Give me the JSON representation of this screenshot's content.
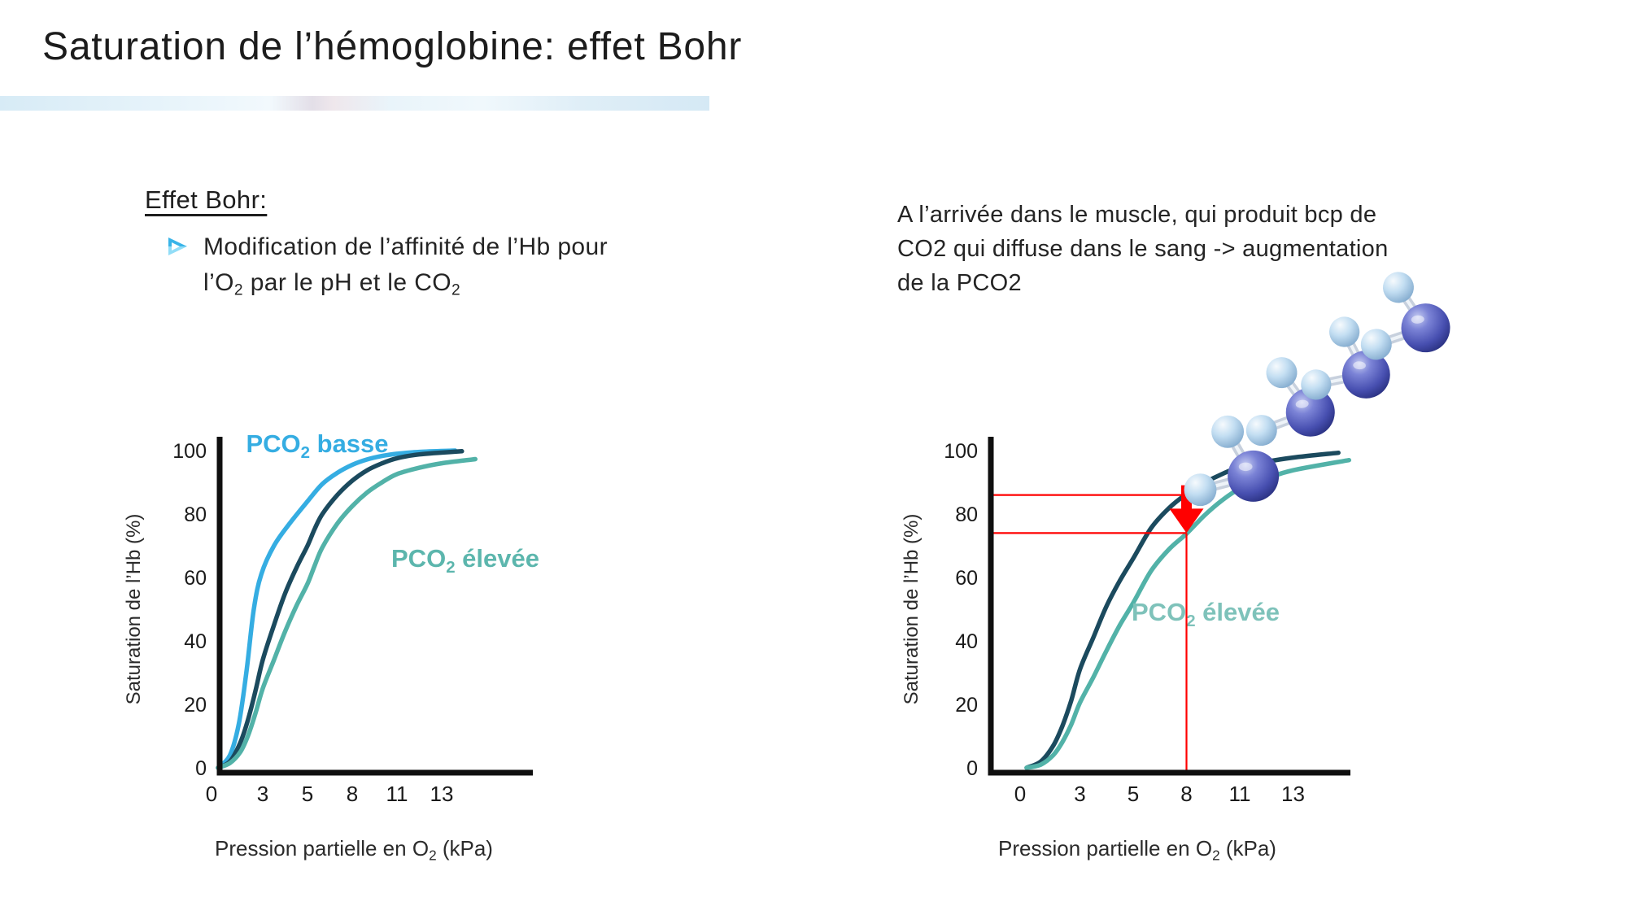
{
  "slide": {
    "title": "Saturation de l’hémoglobine: effet Bohr",
    "accent_band_colors": [
      "#D7EBF6",
      "#F2F9FD",
      "#D5E9F5"
    ],
    "effet_bohr": {
      "heading": "Effet Bohr:",
      "bullet_icon": "arrow-bullet",
      "bullet_line1": "Modification de l’affinité de l’Hb pour",
      "bullet_line2": [
        {
          "t": "l’O"
        },
        {
          "sub": "2"
        },
        {
          "t": " par le pH et le CO"
        },
        {
          "sub": "2"
        }
      ]
    },
    "note": {
      "line1": "A l’arrivée dans le muscle, qui produit bcp de",
      "line2": "CO2 qui diffuse dans le sang -> augmentation",
      "line3": "de la PCO2"
    }
  },
  "chart_data": [
    {
      "id": "left",
      "type": "line",
      "title": "",
      "xlabel": [
        {
          "t": "Pression partielle en O"
        },
        {
          "sub": "2"
        },
        {
          "t": " (kPa)"
        }
      ],
      "ylabel": "Saturation de l’Hb (%)",
      "x_tick_labels": [
        "0",
        "3",
        "5",
        "8",
        "11",
        "13"
      ],
      "x_tick_values_kpa": [
        0,
        3,
        5,
        8,
        11,
        13
      ],
      "y_ticks": [
        0,
        20,
        40,
        60,
        80,
        100
      ],
      "ylim": [
        0,
        100
      ],
      "grid": false,
      "legend_position": "inline-labels",
      "series": [
        {
          "name": "pco2-basse",
          "label": [
            {
              "t": "PCO"
            },
            {
              "sub": "2"
            },
            {
              "t": " basse"
            }
          ],
          "color": "#35ADE2",
          "label_color": "#35ADE2",
          "points": [
            [
              0,
              0
            ],
            [
              0.8,
              4
            ],
            [
              1.4,
              14
            ],
            [
              1.9,
              30
            ],
            [
              2.4,
              50
            ],
            [
              2.9,
              61
            ],
            [
              3.5,
              70
            ],
            [
              4.2,
              77
            ],
            [
              5,
              84
            ],
            [
              6,
              89.5
            ],
            [
              7,
              93
            ],
            [
              8,
              95.5
            ],
            [
              9,
              97.2
            ],
            [
              10,
              98.3
            ],
            [
              11,
              99
            ],
            [
              12,
              99.6
            ],
            [
              13.6,
              100
            ]
          ]
        },
        {
          "name": "pco2-normale",
          "label": null,
          "color": "#1B4A5E",
          "label_color": null,
          "points": [
            [
              0,
              0
            ],
            [
              0.8,
              2
            ],
            [
              1.5,
              8
            ],
            [
              2,
              15
            ],
            [
              2.5,
              24
            ],
            [
              3,
              34
            ],
            [
              3.5,
              45
            ],
            [
              4,
              55
            ],
            [
              4.5,
              63
            ],
            [
              5,
              70
            ],
            [
              5.5,
              75.5
            ],
            [
              6,
              80
            ],
            [
              7,
              86
            ],
            [
              8,
              90.5
            ],
            [
              9,
              93.8
            ],
            [
              10,
              96
            ],
            [
              11,
              97.6
            ],
            [
              12,
              98.8
            ],
            [
              13.9,
              99.8
            ]
          ]
        },
        {
          "name": "pco2-elevee",
          "label": [
            {
              "t": "PCO"
            },
            {
              "sub": "2"
            },
            {
              "t": " élevée"
            }
          ],
          "color": "#52B2A8",
          "label_color": "#5CB6AD",
          "points": [
            [
              0,
              0
            ],
            [
              0.8,
              1.5
            ],
            [
              1.5,
              5
            ],
            [
              2,
              10
            ],
            [
              2.5,
              17
            ],
            [
              3,
              25
            ],
            [
              3.5,
              34
            ],
            [
              4,
              43
            ],
            [
              4.5,
              51
            ],
            [
              5,
              58
            ],
            [
              5.5,
              64
            ],
            [
              6,
              69.5
            ],
            [
              7,
              77
            ],
            [
              8,
              82.5
            ],
            [
              9,
              86.8
            ],
            [
              10,
              90
            ],
            [
              11,
              92.6
            ],
            [
              12,
              94.6
            ],
            [
              13,
              96
            ],
            [
              14.5,
              97.3
            ]
          ]
        }
      ]
    },
    {
      "id": "right",
      "type": "line",
      "title": "",
      "xlabel": [
        {
          "t": "Pression partielle en O"
        },
        {
          "sub": "2"
        },
        {
          "t": " (kPa)"
        }
      ],
      "ylabel": "Saturation de l’Hb (%)",
      "x_tick_labels": [
        "0",
        "3",
        "5",
        "8",
        "11",
        "13"
      ],
      "x_tick_values_kpa": [
        0,
        3,
        5,
        8,
        11,
        13
      ],
      "y_ticks": [
        0,
        20,
        40,
        60,
        80,
        100
      ],
      "ylim": [
        0,
        100
      ],
      "grid": false,
      "legend_position": "inline-labels",
      "series": [
        {
          "name": "pco2-normale",
          "label": null,
          "color": "#1B4A5E",
          "label_color": null,
          "points": [
            [
              0,
              0
            ],
            [
              0.8,
              2
            ],
            [
              1.5,
              7
            ],
            [
              2,
              13
            ],
            [
              2.5,
              21
            ],
            [
              3,
              31
            ],
            [
              3.5,
              41
            ],
            [
              4,
              51
            ],
            [
              4.5,
              59
            ],
            [
              5,
              66
            ],
            [
              6,
              75.5
            ],
            [
              7,
              81.8
            ],
            [
              8,
              86.3
            ],
            [
              9,
              89.8
            ],
            [
              10,
              92.6
            ],
            [
              11,
              94.8
            ],
            [
              12,
              96.5
            ],
            [
              13,
              97.8
            ],
            [
              14.7,
              99.3
            ]
          ]
        },
        {
          "name": "pco2-elevee",
          "label": [
            {
              "t": "PCO"
            },
            {
              "sub": "2"
            },
            {
              "t": " élevée"
            }
          ],
          "color": "#52B2A8",
          "label_color": "#7EC2BA",
          "points": [
            [
              0,
              0
            ],
            [
              0.8,
              1
            ],
            [
              1.5,
              4
            ],
            [
              2,
              8
            ],
            [
              2.5,
              13.5
            ],
            [
              3,
              20.5
            ],
            [
              3.5,
              28.5
            ],
            [
              4,
              37
            ],
            [
              4.5,
              45
            ],
            [
              5,
              52
            ],
            [
              6,
              62
            ],
            [
              7,
              68.8
            ],
            [
              8,
              73.8
            ],
            [
              9,
              79.5
            ],
            [
              10,
              84.3
            ],
            [
              11,
              88
            ],
            [
              12,
              91.2
            ],
            [
              13,
              93.8
            ],
            [
              15.1,
              97
            ]
          ]
        }
      ],
      "annotation": {
        "color": "#FF0000",
        "reference_kpa": 8,
        "saturation_normale_pct": 86,
        "saturation_elevee_pct": 74,
        "arrow_direction": "down",
        "molecule_count": 4,
        "molecule_kind": "co2-molecule"
      }
    }
  ]
}
